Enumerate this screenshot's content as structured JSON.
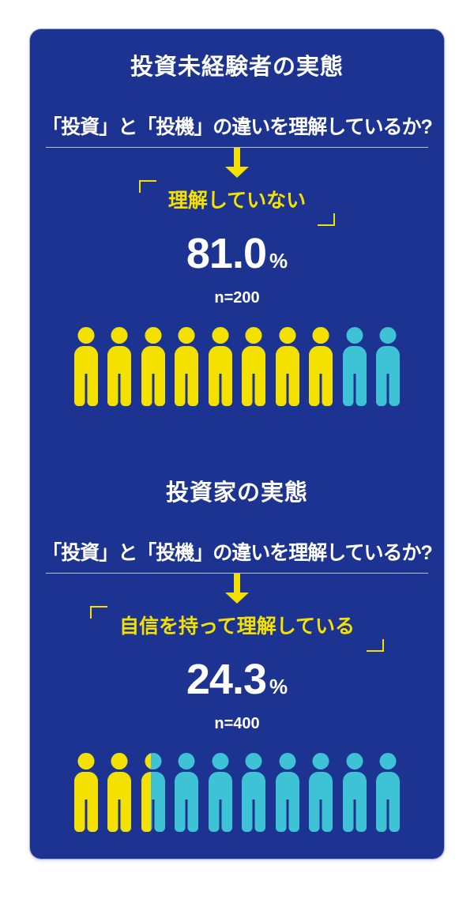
{
  "colors": {
    "background": "#ffffff",
    "card": "#1d3391",
    "yellow": "#f5e100",
    "cyan": "#3ec3d6",
    "text": "#ffffff",
    "divider": "#b9c2de"
  },
  "sections": [
    {
      "title": "投資未経験者の実態",
      "question": "「投資」と「投機」の違いを理解しているか?",
      "answer_label": "理解していない",
      "value": "81.0",
      "percent_sign": "%",
      "sample_label": "n=200",
      "pictogram": {
        "total": 10,
        "filled_units": 8.1
      }
    },
    {
      "title": "投資家の実態",
      "question": "「投資」と「投機」の違いを理解しているか?",
      "answer_label": "自信を持って理解している",
      "value": "24.3",
      "percent_sign": "%",
      "sample_label": "n=400",
      "pictogram": {
        "total": 10,
        "filled_units": 2.43
      }
    }
  ],
  "chart_data": [
    {
      "type": "pictogram",
      "title": "投資未経験者の実態",
      "question": "「投資」と「投機」の違いを理解しているか?",
      "category": "理解していない",
      "value_percent": 81.0,
      "sample_size": 200,
      "units_total": 10,
      "units_filled": 8.1,
      "filled_color": "#f5e100",
      "unfilled_color": "#3ec3d6"
    },
    {
      "type": "pictogram",
      "title": "投資家の実態",
      "question": "「投資」と「投機」の違いを理解しているか?",
      "category": "自信を持って理解している",
      "value_percent": 24.3,
      "sample_size": 400,
      "units_total": 10,
      "units_filled": 2.43,
      "filled_color": "#f5e100",
      "unfilled_color": "#3ec3d6"
    }
  ]
}
